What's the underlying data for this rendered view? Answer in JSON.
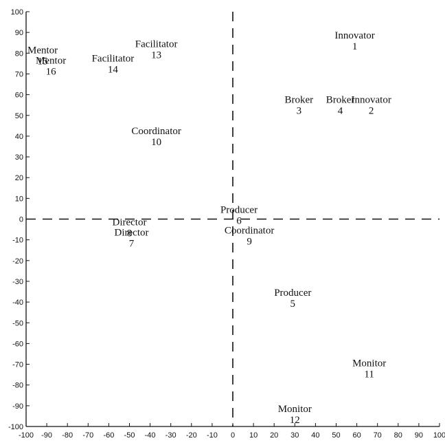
{
  "chart_data": {
    "type": "scatter",
    "title": "",
    "xlabel": "",
    "ylabel": "",
    "xlim": [
      -100,
      100
    ],
    "ylim": [
      -100,
      100
    ],
    "xticks": [
      -100,
      -90,
      -80,
      -70,
      -60,
      -50,
      -40,
      -30,
      -20,
      -10,
      0,
      10,
      20,
      30,
      40,
      50,
      60,
      70,
      80,
      90,
      100
    ],
    "yticks": [
      -100,
      -90,
      -80,
      -70,
      -60,
      -50,
      -40,
      -30,
      -20,
      -10,
      0,
      10,
      20,
      30,
      40,
      50,
      60,
      70,
      80,
      90,
      100
    ],
    "grid": false,
    "reference_lines": {
      "x": 0,
      "y": 0,
      "style": "dashed"
    },
    "points": [
      {
        "id": "1",
        "role": "Innovator",
        "x": 59,
        "y": 86
      },
      {
        "id": "2",
        "role": "Innovator",
        "x": 67,
        "y": 55
      },
      {
        "id": "3",
        "role": "Broker",
        "x": 32,
        "y": 55
      },
      {
        "id": "4",
        "role": "Broker",
        "x": 52,
        "y": 55
      },
      {
        "id": "5",
        "role": "Producer",
        "x": 29,
        "y": -38
      },
      {
        "id": "6",
        "role": "Producer",
        "x": 3,
        "y": 2
      },
      {
        "id": "7",
        "role": "Director",
        "x": -49,
        "y": -9
      },
      {
        "id": "8",
        "role": "Director",
        "x": -50,
        "y": -4
      },
      {
        "id": "9",
        "role": "Coordinator",
        "x": 8,
        "y": -8
      },
      {
        "id": "10",
        "role": "Coordinator",
        "x": -37,
        "y": 40
      },
      {
        "id": "11",
        "role": "Monitor",
        "x": 66,
        "y": -72
      },
      {
        "id": "12",
        "role": "Monitor",
        "x": 30,
        "y": -94
      },
      {
        "id": "13",
        "role": "Facilitator",
        "x": -37,
        "y": 82
      },
      {
        "id": "14",
        "role": "Facilitator",
        "x": -58,
        "y": 75
      },
      {
        "id": "15",
        "role": "Mentor",
        "x": -92,
        "y": 79
      },
      {
        "id": "16",
        "role": "Mentor",
        "x": -88,
        "y": 74
      }
    ]
  }
}
